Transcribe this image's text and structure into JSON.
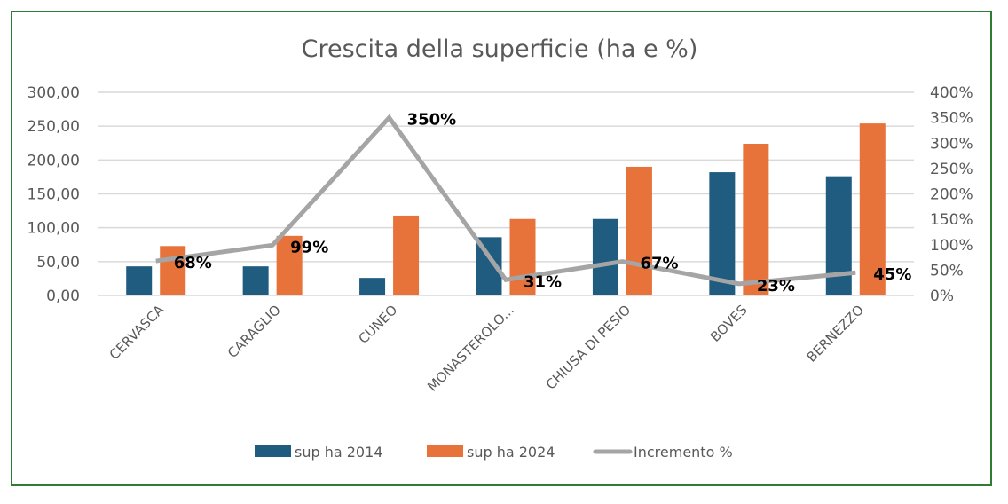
{
  "chart_data": {
    "type": "bar",
    "title": "Crescita della superficie (ha e %)",
    "categories": [
      "CERVASCA",
      "CARAGLIO",
      "CUNEO",
      "MONASTEROLO...",
      "CHIUSA DI PESIO",
      "BOVES",
      "BERNEZZO"
    ],
    "series": [
      {
        "name": "sup ha 2014",
        "type": "bar",
        "axis": "left",
        "color": "#1f5c7f",
        "values": [
          43,
          43,
          26,
          86,
          113,
          182,
          176
        ]
      },
      {
        "name": "sup ha 2024",
        "type": "bar",
        "axis": "left",
        "color": "#e8733a",
        "values": [
          73,
          88,
          118,
          113,
          190,
          224,
          254
        ]
      },
      {
        "name": "Incremento %",
        "type": "line",
        "axis": "right",
        "color": "#a5a5a5",
        "values": [
          68,
          99,
          350,
          31,
          67,
          23,
          45
        ],
        "labels": [
          "68%",
          "99%",
          "350%",
          "31%",
          "67%",
          "23%",
          "45%"
        ]
      }
    ],
    "y_left": {
      "ylim": [
        0,
        300
      ],
      "ticks": [
        "0,00",
        "50,00",
        "100,00",
        "150,00",
        "200,00",
        "250,00",
        "300,00"
      ]
    },
    "y_right": {
      "ylim": [
        0,
        400
      ],
      "ticks": [
        "0%",
        "50%",
        "100%",
        "150%",
        "200%",
        "250%",
        "300%",
        "350%",
        "400%"
      ]
    },
    "grid": true,
    "legend": "bottom"
  }
}
